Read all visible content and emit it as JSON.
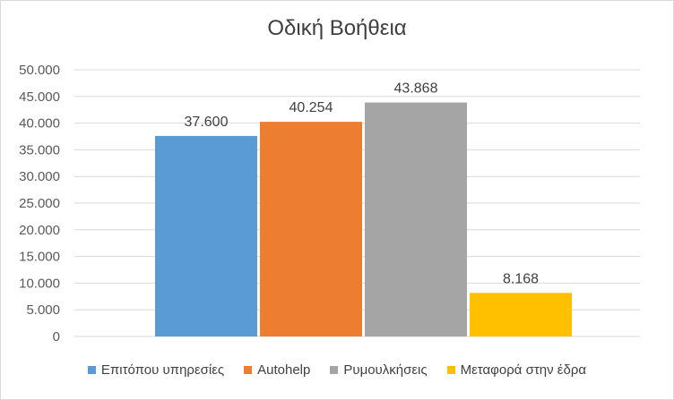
{
  "chart_data": {
    "type": "bar",
    "title": "Οδική Βοήθεια",
    "categories": [
      ""
    ],
    "series": [
      {
        "name": "Επιτόπου υπηρεσίες",
        "values": [
          37600
        ],
        "label": "37.600",
        "color": "#5b9bd5"
      },
      {
        "name": "Autohelp",
        "values": [
          40254
        ],
        "label": "40.254",
        "color": "#ed7d31"
      },
      {
        "name": "Ρυμουλκήσεις",
        "values": [
          43868
        ],
        "label": "43.868",
        "color": "#a5a5a5"
      },
      {
        "name": "Μεταφορά στην έδρα",
        "values": [
          8168
        ],
        "label": "8.168",
        "color": "#ffc000"
      }
    ],
    "ylim": [
      0,
      50000
    ],
    "yticks": [
      0,
      5000,
      10000,
      15000,
      20000,
      25000,
      30000,
      35000,
      40000,
      45000,
      50000
    ],
    "ytick_labels": [
      "0",
      "5.000",
      "10.000",
      "15.000",
      "20.000",
      "25.000",
      "30.000",
      "35.000",
      "40.000",
      "45.000",
      "50.000"
    ],
    "grid": true,
    "legend": "bottom"
  }
}
